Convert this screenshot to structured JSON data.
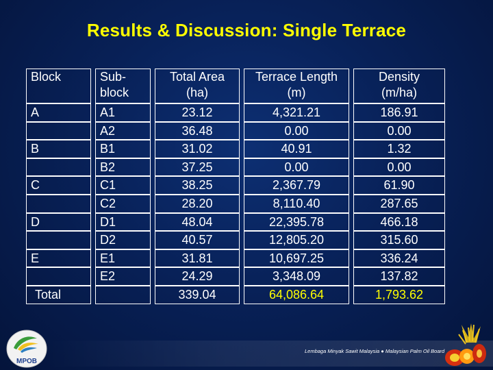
{
  "title": "Results & Discussion: Single Terrace",
  "table": {
    "headers": {
      "block": "Block",
      "subblock": "Sub-block",
      "area_line1": "Total Area",
      "area_line2": "(ha)",
      "length_line1": "Terrace Length",
      "length_line2": "(m)",
      "density_line1": "Density",
      "density_line2": "(m/ha)"
    },
    "rows": [
      {
        "block": "A",
        "subblock": "A1",
        "area": "23.12",
        "length": "4,321.21",
        "density": "186.91"
      },
      {
        "block": "",
        "subblock": "A2",
        "area": "36.48",
        "length": "0.00",
        "density": "0.00"
      },
      {
        "block": "B",
        "subblock": "B1",
        "area": "31.02",
        "length": "40.91",
        "density": "1.32"
      },
      {
        "block": "",
        "subblock": "B2",
        "area": "37.25",
        "length": "0.00",
        "density": "0.00"
      },
      {
        "block": "C",
        "subblock": "C1",
        "area": "38.25",
        "length": "2,367.79",
        "density": "61.90"
      },
      {
        "block": "",
        "subblock": "C2",
        "area": "28.20",
        "length": "8,110.40",
        "density": "287.65"
      },
      {
        "block": "D",
        "subblock": "D1",
        "area": "48.04",
        "length": "22,395.78",
        "density": "466.18"
      },
      {
        "block": "",
        "subblock": "D2",
        "area": "40.57",
        "length": "12,805.20",
        "density": "315.60"
      },
      {
        "block": "E",
        "subblock": "E1",
        "area": "31.81",
        "length": "10,697.25",
        "density": "336.24"
      },
      {
        "block": "",
        "subblock": "E2",
        "area": "24.29",
        "length": "3,348.09",
        "density": "137.82"
      }
    ],
    "total": {
      "label": "Total",
      "area": "339.04",
      "length": "64,086.64",
      "density": "1,793.62"
    }
  },
  "footer": {
    "logo_text": "MPOB",
    "org_text": "Lembaga Minyak Sawit Malaysia ● Malaysian Palm Oil Board"
  },
  "colors": {
    "title": "#ffff00",
    "background": "#082158",
    "highlight": "#ffff00"
  }
}
